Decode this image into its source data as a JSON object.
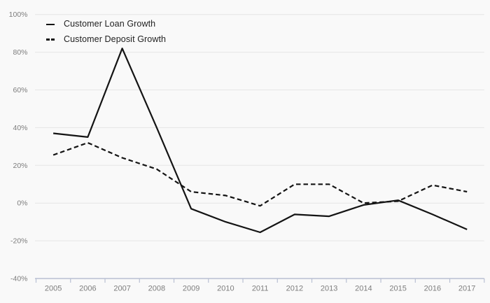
{
  "chart_data": {
    "type": "line",
    "title": "",
    "xlabel": "",
    "ylabel": "",
    "x_labels": [
      "2005",
      "2006",
      "2007",
      "2008",
      "2009",
      "2010",
      "2011",
      "2012",
      "2013",
      "2014",
      "2015",
      "2016",
      "2017"
    ],
    "series": [
      {
        "name": "Customer Loan Growth",
        "style": "solid",
        "color": "#141414",
        "values": [
          37,
          35,
          82,
          40,
          -3,
          -10,
          -15.5,
          -6,
          -7,
          -1,
          1.5,
          -6,
          -14
        ]
      },
      {
        "name": "Customer Deposit Growth",
        "style": "dashed",
        "color": "#141414",
        "values": [
          25.5,
          32,
          24,
          18,
          6,
          4,
          -1.5,
          10,
          10,
          0,
          1,
          9.5,
          6
        ]
      }
    ],
    "ylim": [
      -40,
      100
    ],
    "y_ticks": [
      100,
      80,
      60,
      40,
      20,
      0,
      -20,
      -40
    ],
    "y_tick_labels": [
      "100%",
      "80%",
      "60%",
      "40%",
      "20%",
      "0%",
      "-20%",
      "-40%"
    ],
    "grid": "horizontal",
    "legend_position": "top-left"
  },
  "legend": {
    "items": [
      {
        "label": "Customer Loan Growth",
        "marker": "solid-line"
      },
      {
        "label": "Customer Deposit Growth",
        "marker": "dashed-line"
      }
    ]
  },
  "colors": {
    "background": "#f9f9f9",
    "gridline": "#e6e6e6",
    "axis": "#b9c0d3",
    "tick_label": "#7d7d7d",
    "line": "#141414",
    "legend_text": "#222222"
  }
}
